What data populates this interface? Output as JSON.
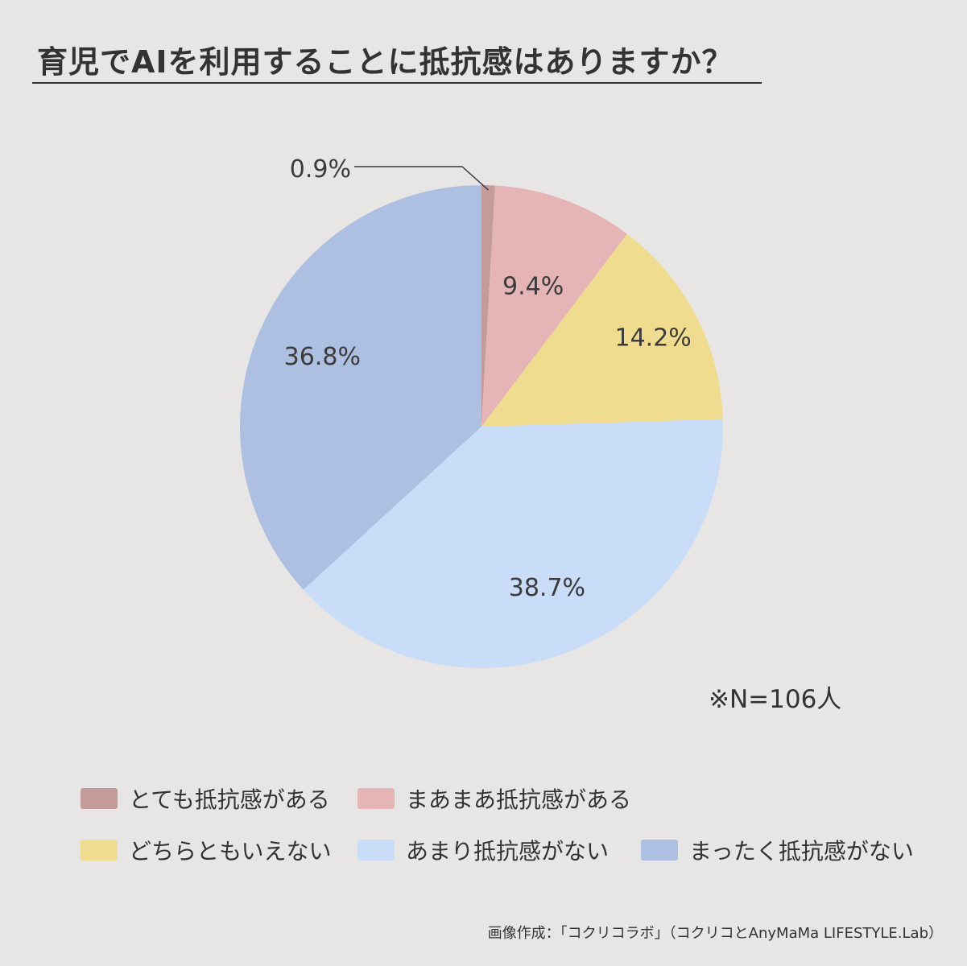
{
  "title": "育児でAIを利用することに抵抗感はありますか？",
  "note": "※N=106人",
  "credit": "画像作成：「コクリコラボ」（コクリコとAnyMaMa LIFESTYLE.Lab）",
  "chart_data": {
    "type": "pie",
    "title": "育児でAIを利用することに抵抗感はありますか？",
    "start": "12 o'clock, clockwise",
    "slices": [
      {
        "name": "とても抵抗感がある",
        "value": 0.9,
        "label": "0.9%",
        "color": "#c49b9b"
      },
      {
        "name": "まあまあ抵抗感がある",
        "value": 9.4,
        "label": "9.4%",
        "color": "#e5b4b6"
      },
      {
        "name": "どちらともいえない",
        "value": 14.2,
        "label": "14.2%",
        "color": "#f0dc8e"
      },
      {
        "name": "あまり抵抗感がない",
        "value": 38.7,
        "label": "38.7%",
        "color": "#c9dcf8"
      },
      {
        "name": "まったく抵抗感がない",
        "value": 36.8,
        "label": "36.8%",
        "color": "#aec0e1"
      }
    ],
    "legend_placement": "bottom"
  }
}
